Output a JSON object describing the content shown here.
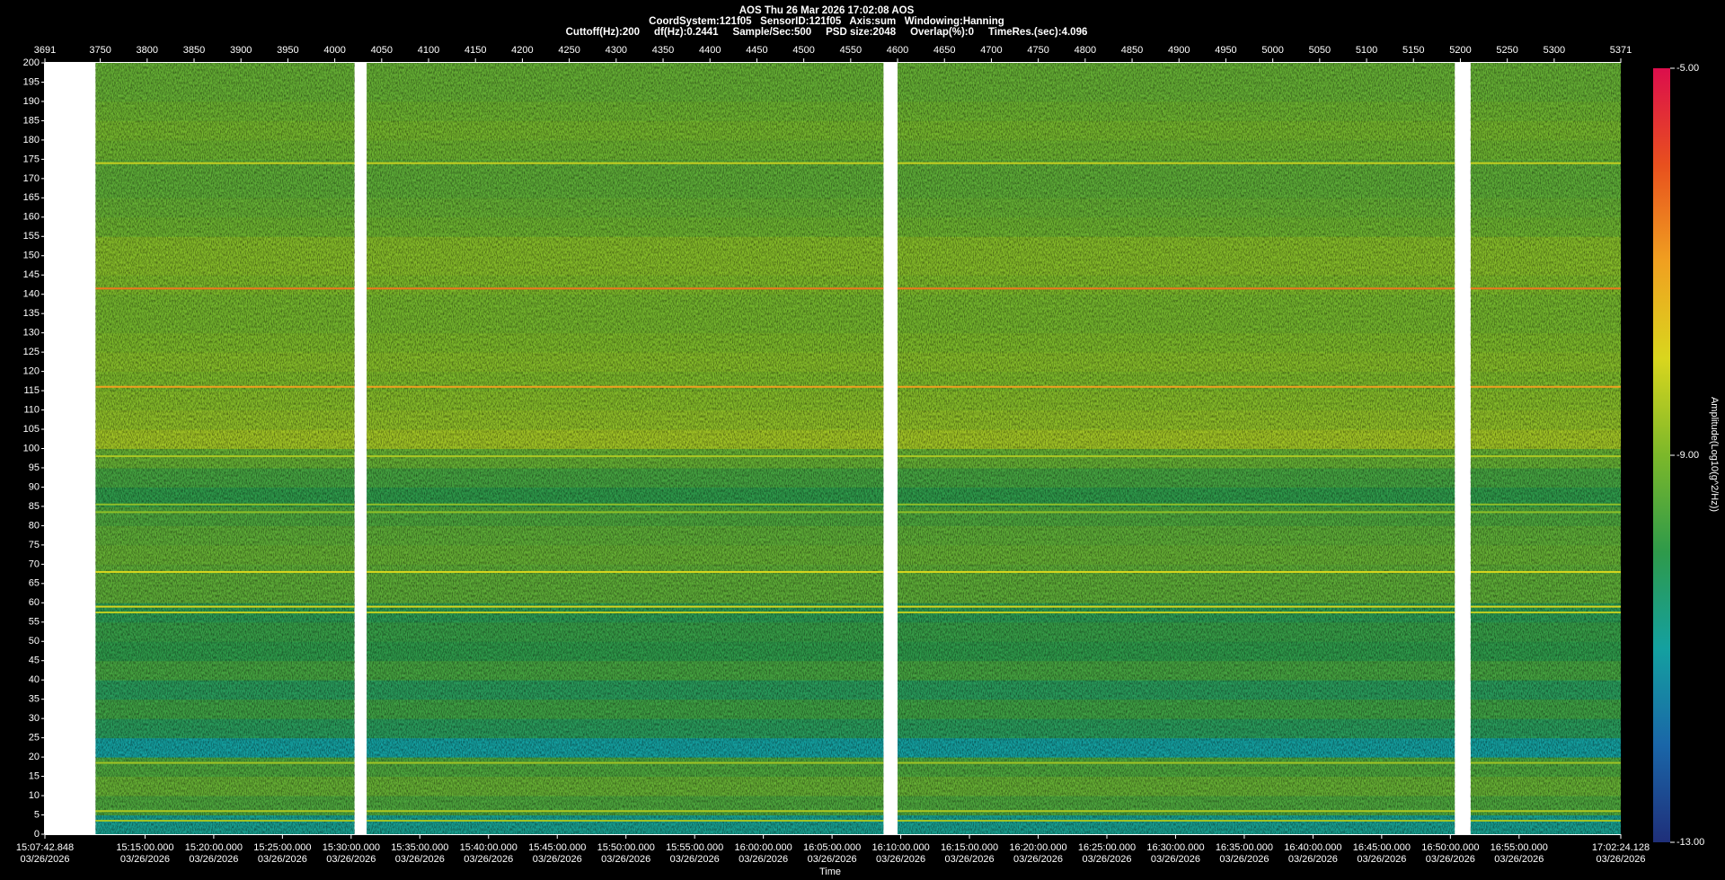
{
  "chart_data": {
    "type": "spectrogram",
    "title": "AOS  Thu 26 Mar 2026 17:02:08  AOS",
    "subtitles": [
      "CoordSystem:121f05   SensorID:121f05   Axis:sum   Windowing:Hanning",
      "Cuttoff(Hz):200     df(Hz):0.2441     Sample/Sec:500     PSD size:2048     Overlap(%):0     TimeRes.(sec):4.096"
    ],
    "xlabel": "Time",
    "colorbar_label": "Amplitude(Log10(g^2/Hz))",
    "xlim": [
      3691,
      5371
    ],
    "xticks": [
      3691,
      3750,
      3800,
      3850,
      3900,
      3950,
      4000,
      4050,
      4100,
      4150,
      4200,
      4250,
      4300,
      4350,
      4400,
      4450,
      4500,
      4550,
      4600,
      4650,
      4700,
      4750,
      4800,
      4850,
      4900,
      4950,
      5000,
      5050,
      5100,
      5150,
      5200,
      5250,
      5300,
      5371
    ],
    "x2ticks": [
      {
        "value": 3691,
        "label": "15:07:42.848"
      },
      {
        "value": 3797.73,
        "label": "15:15:00.000"
      },
      {
        "value": 3870.97,
        "label": "15:20:00.000"
      },
      {
        "value": 3944.21,
        "label": "15:25:00.000"
      },
      {
        "value": 4017.46,
        "label": "15:30:00.000"
      },
      {
        "value": 4090.7,
        "label": "15:35:00.000"
      },
      {
        "value": 4163.94,
        "label": "15:40:00.000"
      },
      {
        "value": 4237.18,
        "label": "15:45:00.000"
      },
      {
        "value": 4310.43,
        "label": "15:50:00.000"
      },
      {
        "value": 4383.67,
        "label": "15:55:00.000"
      },
      {
        "value": 4456.91,
        "label": "16:00:00.000"
      },
      {
        "value": 4530.15,
        "label": "16:05:00.000"
      },
      {
        "value": 4603.4,
        "label": "16:10:00.000"
      },
      {
        "value": 4676.64,
        "label": "16:15:00.000"
      },
      {
        "value": 4749.88,
        "label": "16:20:00.000"
      },
      {
        "value": 4823.12,
        "label": "16:25:00.000"
      },
      {
        "value": 4896.36,
        "label": "16:30:00.000"
      },
      {
        "value": 4969.61,
        "label": "16:35:00.000"
      },
      {
        "value": 5042.85,
        "label": "16:40:00.000"
      },
      {
        "value": 5116.09,
        "label": "16:45:00.000"
      },
      {
        "value": 5189.33,
        "label": "16:50:00.000"
      },
      {
        "value": 5262.58,
        "label": "16:55:00.000"
      },
      {
        "value": 5371,
        "label": "17:02:24.128"
      }
    ],
    "x2tick_dates": [
      "03/26/2026",
      "03/26/2026",
      "03/26/2026",
      "03/26/2026",
      "03/26/2026",
      "03/26/2026",
      "03/26/2026",
      "03/26/2026",
      "03/26/2026",
      "03/26/2026",
      "03/26/2026",
      "03/26/2026",
      "03/26/2026",
      "03/26/2026",
      "03/26/2026",
      "03/26/2026",
      "03/26/2026",
      "03/26/2026",
      "03/26/2026",
      "03/26/2026",
      "03/26/2026",
      "03/26/2026",
      "03/26/2026"
    ],
    "ylim": [
      0,
      200
    ],
    "yticks": [
      0,
      5,
      10,
      15,
      20,
      25,
      30,
      35,
      40,
      45,
      50,
      55,
      60,
      65,
      70,
      75,
      80,
      85,
      90,
      95,
      100,
      105,
      110,
      115,
      120,
      125,
      130,
      135,
      140,
      145,
      150,
      155,
      160,
      165,
      170,
      175,
      180,
      185,
      190,
      195,
      200
    ],
    "segments": [
      [
        3745,
        4021
      ],
      [
        4034,
        4585
      ],
      [
        4600,
        5194
      ],
      [
        5211,
        5371
      ]
    ],
    "bands": {
      "edges": [
        0,
        5,
        10,
        15,
        20,
        25,
        30,
        35,
        40,
        45,
        50,
        55,
        60,
        65,
        70,
        75,
        80,
        85,
        90,
        95,
        100,
        105,
        110,
        115,
        120,
        125,
        130,
        135,
        140,
        145,
        150,
        155,
        160,
        165,
        170,
        175,
        180,
        185,
        190,
        195,
        200
      ],
      "values": [
        -10.8,
        -9.6,
        -9.3,
        -9.6,
        -11,
        -10.2,
        -9.8,
        -10.2,
        -9.7,
        -10,
        -9.9,
        -10.1,
        -9.4,
        -9.4,
        -9.3,
        -9.4,
        -9.6,
        -10,
        -9.7,
        -9.3,
        -8.6,
        -8.8,
        -8.9,
        -9,
        -8.9,
        -9,
        -9.1,
        -9.1,
        -9,
        -8.9,
        -8.9,
        -9.2,
        -9.3,
        -9.4,
        -9.4,
        -9.2,
        -9.1,
        -9.2,
        -9.3,
        -9.3
      ]
    },
    "peaks": {
      "freqs": [
        174,
        141.5,
        116,
        98,
        85.5,
        83.5,
        68,
        59,
        57.5,
        18.5,
        6,
        3.5
      ],
      "values": [
        -8.2,
        -6.5,
        -7,
        -8.5,
        -8.8,
        -8.8,
        -8,
        -8,
        -8.3,
        -8.6,
        -8.5,
        -8.6
      ]
    },
    "clim": [
      -13,
      -5
    ],
    "cticks": [
      {
        "value": -5,
        "label": "-5.00"
      },
      {
        "value": -9,
        "label": "-9.00"
      },
      {
        "value": -13,
        "label": "-13.00"
      }
    ],
    "colormap": [
      "#1f2f7a",
      "#1a66a8",
      "#14a0a0",
      "#2e9a4a",
      "#7cb82a",
      "#d9d61e",
      "#f0a020",
      "#e8501e",
      "#dc0e4c"
    ]
  }
}
